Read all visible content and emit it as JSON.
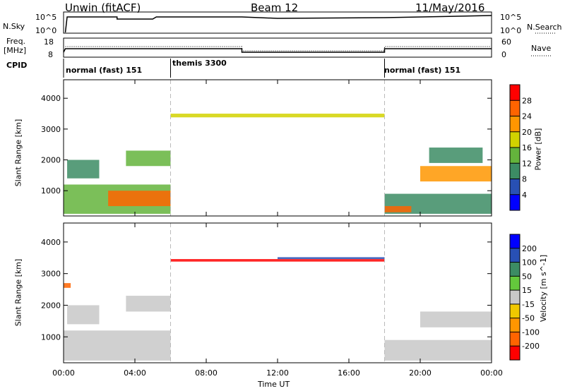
{
  "header": {
    "station": "Unwin (fitACF)",
    "beam": "Beam 12",
    "date": "11/May/2016"
  },
  "noise_panel": {
    "left_label": "N.Sky",
    "left_ticks": [
      "10^5",
      "10^0"
    ],
    "right_label": "N.Search",
    "right_ticks": [
      "10^5",
      "10^0"
    ]
  },
  "freq_panel": {
    "left_label_line1": "Freq.",
    "left_label_line2": "[MHz]",
    "left_ticks": [
      "18",
      "8"
    ],
    "right_label": "Nave",
    "right_ticks": [
      "60",
      "0"
    ]
  },
  "cpid": {
    "label": "CPID",
    "segments": [
      {
        "name": "normal (fast) 151",
        "start": 0,
        "end": 6
      },
      {
        "name": "themis 3300",
        "start": 6,
        "end": 18
      },
      {
        "name": "normal (fast) 151",
        "start": 18,
        "end": 24
      }
    ]
  },
  "x_axis": {
    "label": "Time UT",
    "ticks": [
      "00:00",
      "04:00",
      "08:00",
      "12:00",
      "16:00",
      "20:00",
      "00:00"
    ],
    "tick_hours": [
      0,
      4,
      8,
      12,
      16,
      20,
      24
    ],
    "range": [
      0,
      24
    ]
  },
  "y_axis": {
    "label": "Slant Range [km]",
    "ticks": [
      "1000",
      "2000",
      "3000",
      "4000"
    ],
    "tick_values": [
      1000,
      2000,
      3000,
      4000
    ],
    "range": [
      180,
      4600
    ]
  },
  "power_scale": {
    "label": "Power [dB]",
    "ticks": [
      "4",
      "8",
      "12",
      "16",
      "20",
      "24",
      "28"
    ],
    "colors": [
      "#0000ff",
      "#2850b4",
      "#3c8c64",
      "#64b43c",
      "#d2d200",
      "#ff9600",
      "#ff6400",
      "#ff0000"
    ]
  },
  "velocity_scale": {
    "label": "Velocity [m s^-1]",
    "ticks": [
      "200",
      "100",
      "50",
      "15",
      "-15",
      "-50",
      "-100",
      "-200"
    ],
    "colors": [
      "#0000ff",
      "#2850b4",
      "#3c8c64",
      "#64c83c",
      "#c8c8c8",
      "#f0c800",
      "#ff9600",
      "#ff6400",
      "#ff0000"
    ]
  },
  "chart_data": {
    "type": "heatmap",
    "title": "Unwin (fitACF)",
    "xlabel": "Time UT",
    "ylabel": "Slant Range [km]",
    "xlim": [
      0,
      24
    ],
    "ylim": [
      180,
      4600
    ],
    "panels": [
      {
        "name": "Power",
        "unit": "dB",
        "regions": [
          {
            "t0": 0.0,
            "t1": 6.0,
            "r0": 250,
            "r1": 1200,
            "value": 14
          },
          {
            "t0": 2.5,
            "t1": 6.0,
            "r0": 500,
            "r1": 1000,
            "value": 24
          },
          {
            "t0": 0.2,
            "t1": 2.0,
            "r0": 1400,
            "r1": 2000,
            "value": 10
          },
          {
            "t0": 3.5,
            "t1": 6.0,
            "r0": 1800,
            "r1": 2300,
            "value": 12
          },
          {
            "t0": 6.0,
            "t1": 18.0,
            "r0": 3380,
            "r1": 3500,
            "value": 16
          },
          {
            "t0": 18.0,
            "t1": 24.0,
            "r0": 250,
            "r1": 900,
            "value": 10
          },
          {
            "t0": 18.0,
            "t1": 19.5,
            "r0": 300,
            "r1": 500,
            "value": 26
          },
          {
            "t0": 20.0,
            "t1": 24.0,
            "r0": 1300,
            "r1": 1800,
            "value": 20
          },
          {
            "t0": 20.5,
            "t1": 23.5,
            "r0": 1900,
            "r1": 2400,
            "value": 8
          }
        ]
      },
      {
        "name": "Velocity",
        "unit": "m s^-1",
        "regions": [
          {
            "t0": 0.0,
            "t1": 6.0,
            "r0": 250,
            "r1": 1200,
            "value": 0
          },
          {
            "t0": 0.2,
            "t1": 2.0,
            "r0": 1400,
            "r1": 2000,
            "value": 0
          },
          {
            "t0": 3.5,
            "t1": 6.0,
            "r0": 1800,
            "r1": 2300,
            "value": 0
          },
          {
            "t0": 6.0,
            "t1": 18.0,
            "r0": 3380,
            "r1": 3460,
            "value": -250
          },
          {
            "t0": 12.0,
            "t1": 18.0,
            "r0": 3460,
            "r1": 3520,
            "value": 100
          },
          {
            "t0": 18.0,
            "t1": 24.0,
            "r0": 250,
            "r1": 900,
            "value": 0
          },
          {
            "t0": 20.0,
            "t1": 24.0,
            "r0": 1300,
            "r1": 1800,
            "value": 0
          },
          {
            "t0": 0.0,
            "t1": 0.4,
            "r0": 2550,
            "r1": 2700,
            "value": -200
          }
        ]
      }
    ],
    "cpid_segments": [
      {
        "name": "normal (fast) 151",
        "start": 0,
        "end": 6
      },
      {
        "name": "themis 3300",
        "start": 6,
        "end": 18
      },
      {
        "name": "normal (fast) 151",
        "start": 18,
        "end": 24
      }
    ]
  }
}
